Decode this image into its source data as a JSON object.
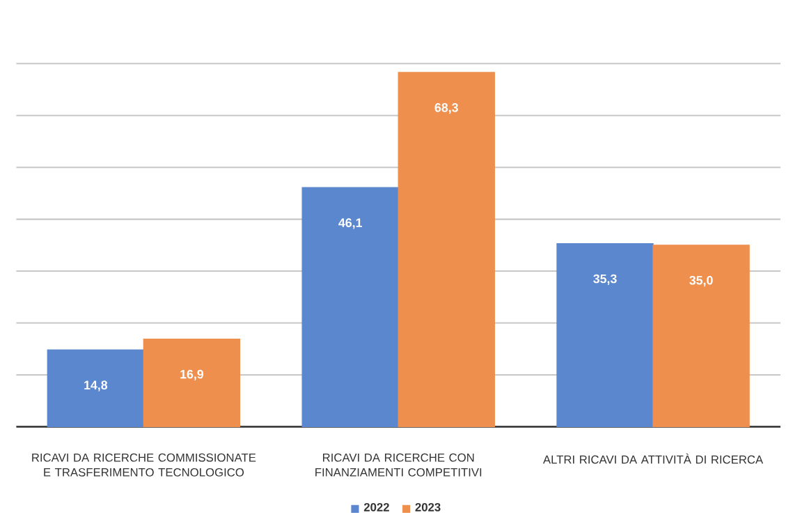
{
  "chart_data": {
    "type": "bar",
    "categories": [
      "RICAVI DA RICERCHE COMMISSIONATE E TRASFERIMENTO TECNOLOGICO",
      "RICAVI DA RICERCHE CON FINANZIAMENTI COMPETITIVI",
      "ALTRI RICAVI DA ATTIVITÀ DI RICERCA"
    ],
    "series": [
      {
        "name": "2022",
        "color": "#5b87ce",
        "values": [
          14.8,
          46.1,
          35.3
        ],
        "value_labels": [
          "14,8",
          "46,1",
          "35,3"
        ]
      },
      {
        "name": "2023",
        "color": "#ef8f4e",
        "values": [
          16.9,
          68.3,
          35.0
        ],
        "value_labels": [
          "16,9",
          "68,3",
          "35,0"
        ]
      }
    ],
    "grid": "y",
    "legend": "bottom",
    "tick_labels": "x"
  }
}
